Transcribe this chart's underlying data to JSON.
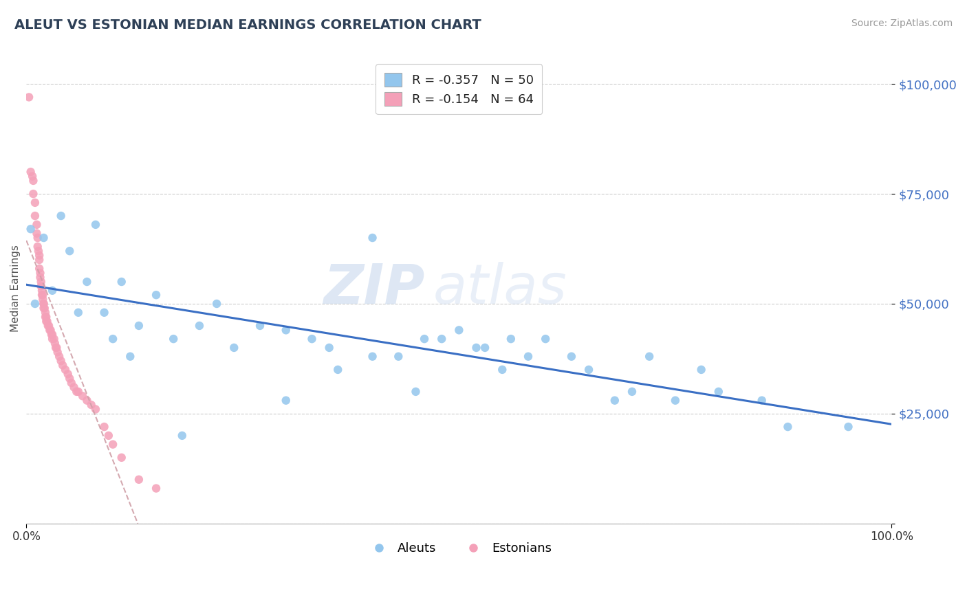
{
  "title": "ALEUT VS ESTONIAN MEDIAN EARNINGS CORRELATION CHART",
  "source": "Source: ZipAtlas.com",
  "ylabel": "Median Earnings",
  "xlim": [
    0.0,
    1.0
  ],
  "ylim": [
    0,
    107000
  ],
  "yticks": [
    0,
    25000,
    50000,
    75000,
    100000
  ],
  "xtick_labels": [
    "0.0%",
    "100.0%"
  ],
  "legend_blue_label": "R = -0.357   N = 50",
  "legend_pink_label": "R = -0.154   N = 64",
  "bottom_legend_blue": "Aleuts",
  "bottom_legend_pink": "Estonians",
  "watermark_zip": "ZIP",
  "watermark_atlas": "atlas",
  "blue_color": "#93C6ED",
  "pink_color": "#F4A0B8",
  "trendline_blue_color": "#3A6FC4",
  "trendline_pink_color": "#D0A0A8",
  "title_color": "#2E4057",
  "ytick_color": "#4472C4",
  "background_color": "#FFFFFF",
  "aleuts_x": [
    0.005,
    0.01,
    0.02,
    0.03,
    0.04,
    0.05,
    0.06,
    0.07,
    0.08,
    0.09,
    0.1,
    0.11,
    0.12,
    0.13,
    0.15,
    0.17,
    0.18,
    0.2,
    0.22,
    0.24,
    0.27,
    0.3,
    0.33,
    0.36,
    0.4,
    0.43,
    0.46,
    0.5,
    0.53,
    0.56,
    0.3,
    0.35,
    0.4,
    0.45,
    0.48,
    0.52,
    0.55,
    0.58,
    0.6,
    0.63,
    0.65,
    0.68,
    0.7,
    0.72,
    0.75,
    0.78,
    0.8,
    0.85,
    0.88,
    0.95
  ],
  "aleuts_y": [
    67000,
    50000,
    65000,
    53000,
    70000,
    62000,
    48000,
    55000,
    68000,
    48000,
    42000,
    55000,
    38000,
    45000,
    52000,
    42000,
    20000,
    45000,
    50000,
    40000,
    45000,
    28000,
    42000,
    35000,
    65000,
    38000,
    42000,
    44000,
    40000,
    42000,
    44000,
    40000,
    38000,
    30000,
    42000,
    40000,
    35000,
    38000,
    42000,
    38000,
    35000,
    28000,
    30000,
    38000,
    28000,
    35000,
    30000,
    28000,
    22000,
    22000
  ],
  "estonians_x": [
    0.003,
    0.005,
    0.007,
    0.008,
    0.008,
    0.01,
    0.01,
    0.012,
    0.012,
    0.013,
    0.013,
    0.014,
    0.015,
    0.015,
    0.015,
    0.016,
    0.016,
    0.017,
    0.017,
    0.018,
    0.018,
    0.019,
    0.019,
    0.02,
    0.02,
    0.02,
    0.021,
    0.022,
    0.022,
    0.023,
    0.023,
    0.024,
    0.025,
    0.026,
    0.027,
    0.028,
    0.029,
    0.03,
    0.03,
    0.032,
    0.033,
    0.034,
    0.035,
    0.036,
    0.038,
    0.04,
    0.042,
    0.045,
    0.048,
    0.05,
    0.052,
    0.055,
    0.058,
    0.06,
    0.065,
    0.07,
    0.075,
    0.08,
    0.09,
    0.095,
    0.1,
    0.11,
    0.13,
    0.15
  ],
  "estonians_y": [
    97000,
    80000,
    79000,
    78000,
    75000,
    73000,
    70000,
    68000,
    66000,
    65000,
    63000,
    62000,
    61000,
    60000,
    58000,
    57000,
    56000,
    55000,
    54000,
    53000,
    52000,
    52000,
    51000,
    50000,
    50000,
    49000,
    49000,
    48000,
    47000,
    47000,
    46000,
    46000,
    45000,
    45000,
    44000,
    44000,
    43000,
    43000,
    42000,
    42000,
    41000,
    40000,
    40000,
    39000,
    38000,
    37000,
    36000,
    35000,
    34000,
    33000,
    32000,
    31000,
    30000,
    30000,
    29000,
    28000,
    27000,
    26000,
    22000,
    20000,
    18000,
    15000,
    10000,
    8000
  ]
}
